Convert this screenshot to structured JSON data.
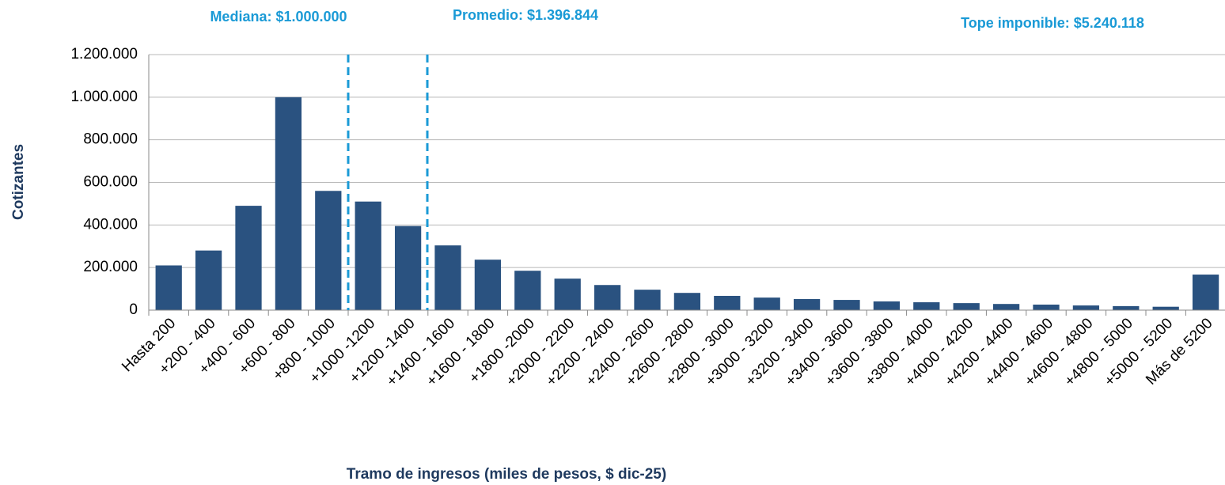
{
  "chart_data": {
    "type": "bar",
    "x_label": "Tramo de ingresos (miles de pesos, $ dic-25)",
    "y_label": "Cotizantes",
    "categories": [
      "Hasta 200",
      "+200 - 400",
      "+400 - 600",
      "+600 - 800",
      "+800 - 1000",
      "+1000 -1200",
      "+1200 -1400",
      "+1400 - 1600",
      "+1600 - 1800",
      "+1800 -2000",
      "+2000 - 2200",
      "+2200 - 2400",
      "+2400 - 2600",
      "+2600 - 2800",
      "+2800 - 3000",
      "+3000 - 3200",
      "+3200 - 3400",
      "+3400 - 3600",
      "+3600 - 3800",
      "+3800 - 4000",
      "+4000 - 4200",
      "+4200 - 4400",
      "+4400 - 4600",
      "+4600 - 4800",
      "+4800 - 5000",
      "+5000 - 5200",
      "Más de 5200"
    ],
    "values": [
      210000,
      280000,
      490000,
      1000000,
      560000,
      510000,
      395000,
      304000,
      237000,
      185000,
      148000,
      118000,
      96000,
      81000,
      67000,
      59000,
      52000,
      48000,
      41000,
      37000,
      33000,
      29000,
      26000,
      22000,
      19000,
      16000,
      167000
    ],
    "color": "#2a5280",
    "ylim": [
      0,
      1200000
    ],
    "yticks": [
      0,
      {
        "value": 200000,
        "label": "200.000"
      },
      {
        "value": 400000,
        "label": "400.000"
      },
      {
        "value": 600000,
        "label": "600.000"
      },
      {
        "value": 800000,
        "label": "800.000"
      },
      {
        "value": 1000000,
        "label": "1.000.000"
      },
      {
        "value": 1200000,
        "label": "1.200.000"
      }
    ],
    "grid": true,
    "reference_lines": [
      {
        "label": "Mediana: $1.000.000",
        "value": 1000,
        "color": "#1a9ad6"
      },
      {
        "label": "Promedio: $1.396.844",
        "value": 1396.844,
        "color": "#1a9ad6"
      }
    ],
    "annotations": [
      "Tope imponible: $5.240.118"
    ]
  }
}
